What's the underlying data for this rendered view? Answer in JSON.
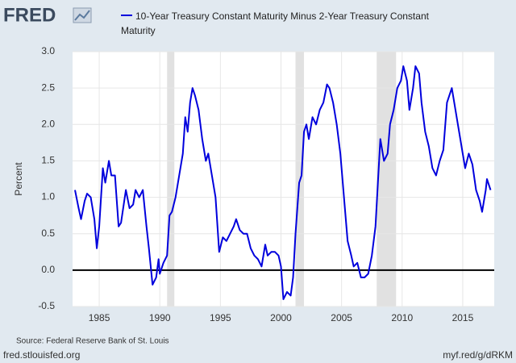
{
  "chart_data": {
    "type": "line",
    "logo": "FRED",
    "ylabel": "Percent",
    "source": "Source: Federal Reserve Bank of St. Louis",
    "site": "fred.stlouisfed.org",
    "short_url": "myf.red/g/dRKM",
    "x": [
      1983.0,
      1983.3,
      1983.5,
      1983.8,
      1984.0,
      1984.3,
      1984.6,
      1984.8,
      1985.0,
      1985.3,
      1985.5,
      1985.8,
      1986.0,
      1986.3,
      1986.6,
      1986.8,
      1987.2,
      1987.5,
      1987.8,
      1988.0,
      1988.3,
      1988.6,
      1988.9,
      1989.1,
      1989.4,
      1989.7,
      1989.9,
      1990.0,
      1990.3,
      1990.6,
      1990.8,
      1991.0,
      1991.3,
      1991.6,
      1991.9,
      1992.1,
      1992.3,
      1992.5,
      1992.7,
      1992.9,
      1993.2,
      1993.5,
      1993.8,
      1994.0,
      1994.3,
      1994.6,
      1994.9,
      1995.2,
      1995.5,
      1995.8,
      1996.1,
      1996.3,
      1996.6,
      1996.9,
      1997.2,
      1997.5,
      1997.8,
      1998.1,
      1998.4,
      1998.7,
      1998.9,
      1999.2,
      1999.5,
      1999.8,
      2000.0,
      2000.2,
      2000.5,
      2000.8,
      2001.0,
      2001.2,
      2001.5,
      2001.7,
      2001.9,
      2002.1,
      2002.3,
      2002.6,
      2002.9,
      2003.2,
      2003.5,
      2003.8,
      2004.0,
      2004.3,
      2004.6,
      2004.9,
      2005.2,
      2005.5,
      2005.8,
      2006.0,
      2006.3,
      2006.6,
      2006.9,
      2007.2,
      2007.5,
      2007.8,
      2008.0,
      2008.2,
      2008.5,
      2008.8,
      2009.0,
      2009.3,
      2009.6,
      2009.9,
      2010.1,
      2010.4,
      2010.6,
      2010.9,
      2011.1,
      2011.4,
      2011.6,
      2011.9,
      2012.2,
      2012.5,
      2012.8,
      2013.1,
      2013.4,
      2013.7,
      2013.9,
      2014.1,
      2014.4,
      2014.7,
      2015.0,
      2015.2,
      2015.5,
      2015.8,
      2016.1,
      2016.4,
      2016.6,
      2016.9,
      2017.0,
      2017.3
    ],
    "series": [
      {
        "name": "10-Year Treasury Constant Maturity Minus 2-Year Treasury Constant Maturity",
        "color": "#0000dd",
        "values": [
          1.1,
          0.85,
          0.7,
          0.95,
          1.05,
          1.0,
          0.7,
          0.3,
          0.6,
          1.4,
          1.2,
          1.5,
          1.3,
          1.3,
          0.6,
          0.65,
          1.1,
          0.85,
          0.9,
          1.1,
          1.0,
          1.1,
          0.6,
          0.3,
          -0.2,
          -0.1,
          0.15,
          -0.05,
          0.1,
          0.2,
          0.75,
          0.8,
          1.0,
          1.3,
          1.6,
          2.1,
          1.9,
          2.3,
          2.5,
          2.4,
          2.2,
          1.8,
          1.5,
          1.6,
          1.3,
          1.0,
          0.25,
          0.45,
          0.4,
          0.5,
          0.6,
          0.7,
          0.55,
          0.5,
          0.5,
          0.3,
          0.2,
          0.15,
          0.05,
          0.35,
          0.2,
          0.25,
          0.25,
          0.2,
          0.05,
          -0.4,
          -0.3,
          -0.35,
          -0.1,
          0.5,
          1.2,
          1.3,
          1.9,
          2.0,
          1.8,
          2.1,
          2.0,
          2.2,
          2.3,
          2.55,
          2.5,
          2.3,
          2.0,
          1.6,
          1.0,
          0.4,
          0.2,
          0.05,
          0.1,
          -0.1,
          -0.1,
          -0.05,
          0.2,
          0.6,
          1.2,
          1.8,
          1.5,
          1.6,
          2.0,
          2.2,
          2.5,
          2.6,
          2.8,
          2.6,
          2.2,
          2.5,
          2.8,
          2.7,
          2.3,
          1.9,
          1.7,
          1.4,
          1.3,
          1.5,
          1.65,
          2.3,
          2.4,
          2.5,
          2.2,
          1.9,
          1.6,
          1.4,
          1.6,
          1.45,
          1.1,
          0.95,
          0.8,
          1.1,
          1.25,
          1.1
        ]
      }
    ],
    "recessions": [
      [
        1990.6,
        1991.2
      ],
      [
        2001.2,
        2001.9
      ],
      [
        2007.9,
        2009.5
      ]
    ],
    "recession_color": "#e1e1e1",
    "xlim": [
      1982.8,
      2017.6
    ],
    "xticks": [
      1985,
      1990,
      1995,
      2000,
      2005,
      2010,
      2015
    ],
    "ylim": [
      -0.5,
      3.0
    ],
    "yticks": [
      -0.5,
      {
        "value": 0,
        "label": "0.0"
      },
      0.5,
      {
        "value": 1,
        "label": "1.0"
      },
      1.5,
      {
        "value": 2,
        "label": "2.0"
      },
      2.5,
      {
        "value": 3,
        "label": "3.0"
      }
    ],
    "grid": true,
    "zero_line": true
  }
}
